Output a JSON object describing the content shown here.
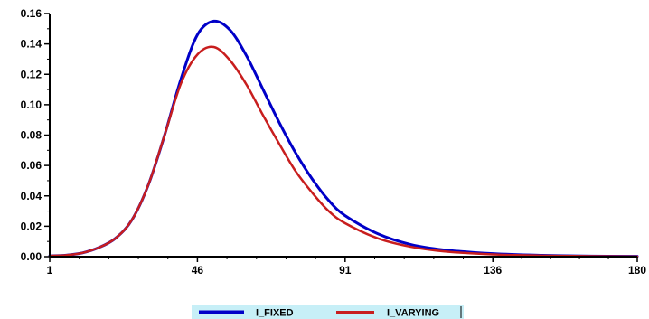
{
  "chart_data": {
    "type": "line",
    "title": "",
    "xlabel": "",
    "ylabel": "",
    "xlim": [
      1,
      180
    ],
    "ylim": [
      0,
      0.16
    ],
    "x_ticks": [
      "1",
      "46",
      "91",
      "136",
      "180"
    ],
    "x_tick_values": [
      1,
      46,
      91,
      136,
      180
    ],
    "y_ticks": [
      "0.00",
      "0.02",
      "0.04",
      "0.06",
      "0.08",
      "0.10",
      "0.12",
      "0.14",
      "0.16"
    ],
    "y_tick_values": [
      0,
      0.02,
      0.04,
      0.06,
      0.08,
      0.1,
      0.12,
      0.14,
      0.16
    ],
    "grid": false,
    "legend_position": "bottom-center",
    "legend_background": "#c7eff7",
    "x": [
      1,
      6,
      11,
      16,
      21,
      26,
      31,
      36,
      41,
      46,
      51,
      56,
      61,
      66,
      71,
      76,
      81,
      86,
      91,
      101,
      111,
      121,
      136,
      151,
      166,
      180
    ],
    "series": [
      {
        "name": "I_FIXED",
        "color": "#0000c8",
        "values": [
          0.0005,
          0.001,
          0.0025,
          0.006,
          0.012,
          0.024,
          0.047,
          0.08,
          0.117,
          0.146,
          0.155,
          0.149,
          0.132,
          0.11,
          0.088,
          0.068,
          0.051,
          0.037,
          0.027,
          0.015,
          0.008,
          0.0045,
          0.002,
          0.0009,
          0.0004,
          0.0002
        ]
      },
      {
        "name": "I_VARYING",
        "color": "#c81e1e",
        "values": [
          0.0005,
          0.001,
          0.0025,
          0.006,
          0.012,
          0.024,
          0.047,
          0.08,
          0.114,
          0.133,
          0.138,
          0.129,
          0.113,
          0.093,
          0.074,
          0.056,
          0.042,
          0.03,
          0.022,
          0.012,
          0.0065,
          0.0035,
          0.0015,
          0.0007,
          0.0003,
          0.0001
        ]
      }
    ]
  }
}
